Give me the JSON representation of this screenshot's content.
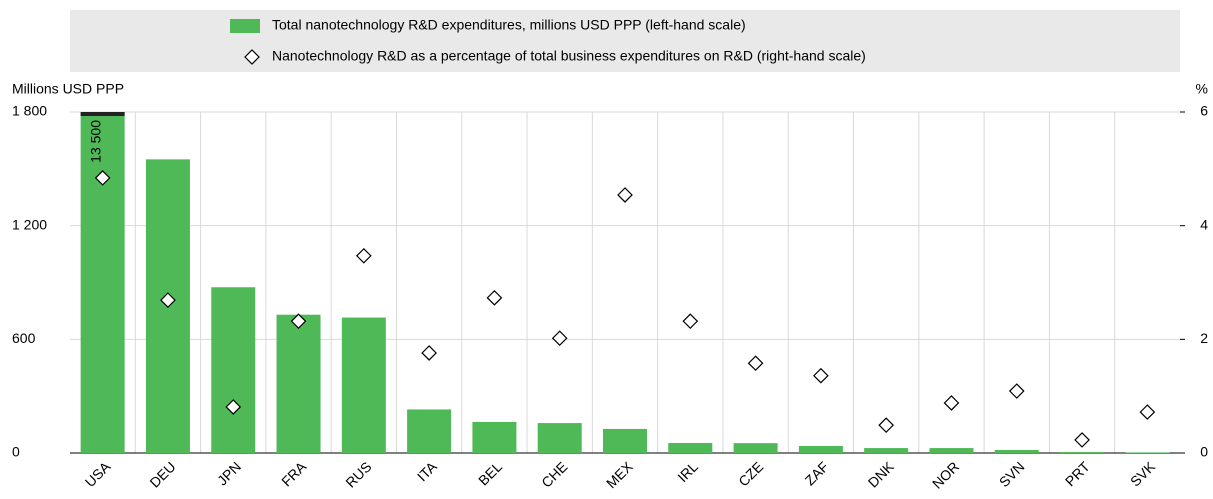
{
  "chart_data": {
    "type": "bar",
    "y_label": "Millions USD PPP",
    "y2_label": "%",
    "categories": [
      "USA",
      "DEU",
      "JPN",
      "FRA",
      "RUS",
      "ITA",
      "BEL",
      "CHE",
      "MEX",
      "IRL",
      "CZE",
      "ZAF",
      "DNK",
      "NOR",
      "SVN",
      "PRT",
      "SVK"
    ],
    "series": [
      {
        "name": "Total nanotechnology R&D expenditures, millions USD PPP (left-hand scale)",
        "type": "bar",
        "color": "#4fb957",
        "axis": "y",
        "values": [
          13500,
          1550,
          875,
          730,
          715,
          230,
          164,
          158,
          127,
          53,
          52,
          37,
          26,
          26,
          16,
          5,
          3
        ],
        "value_labels": [
          "13 500",
          null,
          null,
          null,
          null,
          null,
          null,
          null,
          null,
          null,
          null,
          null,
          null,
          null,
          null,
          null,
          null
        ]
      },
      {
        "name": "Nanotechnology R&D as a percentage of total business expenditures on R&D (right-hand scale)",
        "type": "scatter",
        "color": "#ffffff",
        "axis": "y2",
        "values": [
          4.84,
          2.69,
          0.81,
          2.32,
          3.47,
          1.76,
          2.73,
          2.02,
          4.54,
          2.32,
          1.58,
          1.36,
          0.49,
          0.88,
          1.09,
          0.23,
          0.72
        ]
      }
    ],
    "ylim": [
      0,
      1800
    ],
    "yticks": [
      0,
      600,
      {
        "value": 1200,
        "label": "1 200"
      },
      {
        "value": 1800,
        "label": "1 800"
      }
    ],
    "y2lim": [
      0,
      6
    ],
    "y2ticks": [
      0,
      2,
      4,
      6
    ],
    "grid": true
  }
}
